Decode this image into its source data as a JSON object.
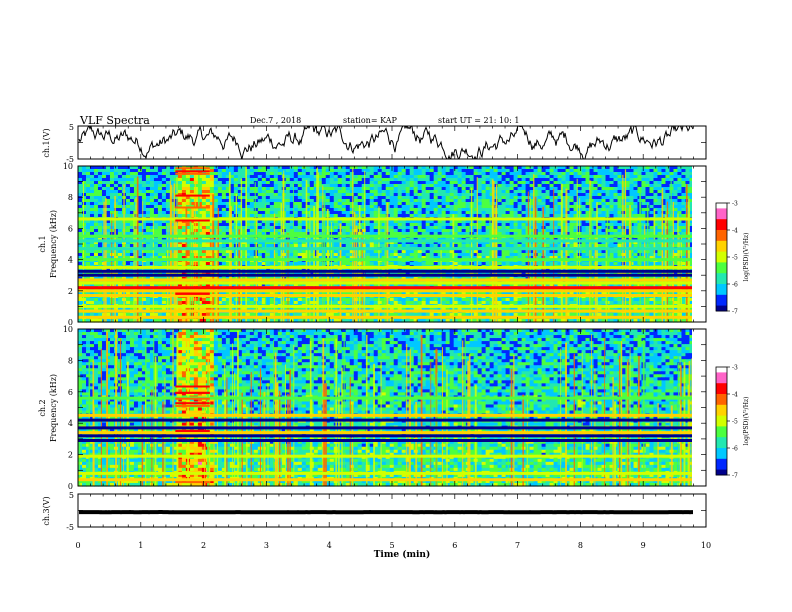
{
  "header": {
    "title": "VLF Spectra",
    "date": "Dec.7 , 2018",
    "station": "station= KAP",
    "start": "start UT = 21: 10: 1"
  },
  "colors": {
    "scale": [
      "#00008c",
      "#0028ff",
      "#00c8ff",
      "#22e8b0",
      "#4cff40",
      "#d2ff00",
      "#ffd200",
      "#ff6400",
      "#ff0000",
      "#ff64c8",
      "#ffffff"
    ]
  },
  "chart_data": [
    {
      "type": "line",
      "name": "ch1-waveform",
      "ylabel": "ch.1(V)",
      "ylim": [
        -5,
        5
      ],
      "yticks": [
        "5",
        "-5"
      ],
      "xlim": [
        0,
        10
      ],
      "x_extent": 9.8,
      "mean": 0.5,
      "amplitude": 2.5
    },
    {
      "type": "heatmap",
      "name": "ch1-spectrogram",
      "ylabel_top": "ch.1",
      "ylabel": "Frequency (kHz)",
      "ylim": [
        0,
        10
      ],
      "yticks": [
        "0",
        "2",
        "4",
        "6",
        "8",
        "10"
      ],
      "xlim": [
        0,
        10
      ],
      "x_extent": 9.8,
      "colorbar": {
        "label": "log(PSD)(V²/Hz)",
        "ticks": [
          "-3",
          "-4",
          "-5",
          "-6",
          "-7"
        ],
        "range": [
          -7,
          -3
        ]
      },
      "noisy_segment": [
        1.55,
        2.1
      ],
      "bands": [
        {
          "f": 0.3,
          "level": -4.4
        },
        {
          "f": 0.7,
          "level": -4.6
        },
        {
          "f": 1.0,
          "level": -4.9
        },
        {
          "f": 1.7,
          "level": -4.3
        },
        {
          "f": 2.0,
          "level": -4.5
        },
        {
          "f": 2.2,
          "level": -3.6
        },
        {
          "f": 2.5,
          "level": -5.0
        },
        {
          "f": 2.7,
          "level": -4.6
        },
        {
          "f": 3.0,
          "level": -6.9
        },
        {
          "f": 3.25,
          "level": -6.9
        },
        {
          "f": 3.5,
          "level": -4.9
        },
        {
          "f": 4.0,
          "level": -5.3
        },
        {
          "f": 4.7,
          "level": -5.6
        },
        {
          "f": 5.2,
          "level": -5.6
        },
        {
          "f": 5.5,
          "level": -5.2
        },
        {
          "f": 6.6,
          "level": -4.9
        }
      ]
    },
    {
      "type": "heatmap",
      "name": "ch2-spectrogram",
      "ylabel_top": "ch.2",
      "ylabel": "Frequency (kHz)",
      "ylim": [
        0,
        10
      ],
      "yticks": [
        "0",
        "2",
        "4",
        "6",
        "8",
        "10"
      ],
      "xlim": [
        0,
        10
      ],
      "x_extent": 9.8,
      "colorbar": {
        "label": "log(PSD)(V²/Hz)",
        "ticks": [
          "-3",
          "-4",
          "-5",
          "-6",
          "-7"
        ],
        "range": [
          -7,
          -3
        ]
      },
      "noisy_segment": [
        1.55,
        2.1
      ],
      "bands": [
        {
          "f": 0.4,
          "level": -4.6
        },
        {
          "f": 0.8,
          "level": -5.0
        },
        {
          "f": 1.9,
          "level": -4.8
        },
        {
          "f": 2.9,
          "level": -6.9
        },
        {
          "f": 3.2,
          "level": -6.8
        },
        {
          "f": 3.4,
          "level": -4.3
        },
        {
          "f": 3.7,
          "level": -6.9
        },
        {
          "f": 4.2,
          "level": -6.9
        },
        {
          "f": 4.5,
          "level": -4.6
        },
        {
          "f": 5.6,
          "level": -5.2
        }
      ]
    },
    {
      "type": "line",
      "name": "ch3-waveform",
      "ylabel": "ch.3(V)",
      "ylim": [
        -5,
        5
      ],
      "yticks": [
        "5",
        "-5"
      ],
      "xlim": [
        0,
        10
      ],
      "x_extent": 9.8,
      "mean": -0.5,
      "amplitude": 0.1
    }
  ],
  "xaxis": {
    "label": "Time (min)",
    "ticks": [
      "0",
      "1",
      "2",
      "3",
      "4",
      "5",
      "6",
      "7",
      "8",
      "9",
      "10"
    ]
  }
}
